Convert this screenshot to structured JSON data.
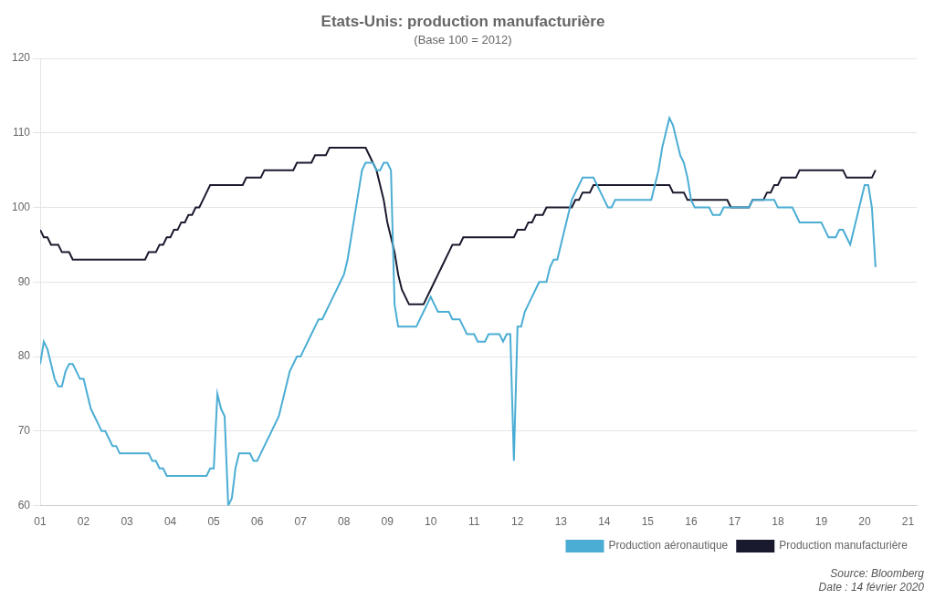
{
  "chart_data": {
    "type": "line",
    "title": "Etats-Unis: production manufacturière",
    "subtitle": "(Base 100 = 2012)",
    "annotations": [
      "Source: Bloomberg",
      "Date : 14 février 2020"
    ],
    "x": [
      2001,
      2001.0833333333333,
      2001.1666666666667,
      2001.25,
      2001.3333333333333,
      2001.4166666666667,
      2001.5,
      2001.5833333333333,
      2001.6666666666667,
      2001.75,
      2001.8333333333333,
      2001.9166666666667,
      2002,
      2002.0833333333333,
      2002.1666666666667,
      2002.25,
      2002.3333333333333,
      2002.4166666666667,
      2002.5,
      2002.5833333333333,
      2002.6666666666667,
      2002.75,
      2002.8333333333333,
      2002.9166666666667,
      2003,
      2003.0833333333333,
      2003.1666666666667,
      2003.25,
      2003.3333333333333,
      2003.4166666666667,
      2003.5,
      2003.5833333333333,
      2003.6666666666667,
      2003.75,
      2003.8333333333333,
      2003.9166666666667,
      2004,
      2004.0833333333333,
      2004.1666666666667,
      2004.25,
      2004.3333333333333,
      2004.4166666666667,
      2004.5,
      2004.5833333333333,
      2004.6666666666667,
      2004.75,
      2004.8333333333333,
      2004.9166666666667,
      2005,
      2005.0833333333333,
      2005.1666666666667,
      2005.25,
      2005.3333333333333,
      2005.4166666666667,
      2005.5,
      2005.5833333333333,
      2005.6666666666667,
      2005.75,
      2005.8333333333333,
      2005.9166666666667,
      2006,
      2006.0833333333333,
      2006.1666666666667,
      2006.25,
      2006.3333333333333,
      2006.4166666666667,
      2006.5,
      2006.5833333333333,
      2006.6666666666667,
      2006.75,
      2006.8333333333333,
      2006.9166666666667,
      2007,
      2007.0833333333333,
      2007.1666666666667,
      2007.25,
      2007.3333333333333,
      2007.4166666666667,
      2007.5,
      2007.5833333333333,
      2007.6666666666667,
      2007.75,
      2007.8333333333333,
      2007.9166666666667,
      2008,
      2008.0833333333333,
      2008.1666666666667,
      2008.25,
      2008.3333333333333,
      2008.4166666666667,
      2008.5,
      2008.5833333333333,
      2008.6666666666667,
      2008.75,
      2008.8333333333333,
      2008.9166666666667,
      2009,
      2009.0833333333333,
      2009.1666666666667,
      2009.25,
      2009.3333333333333,
      2009.4166666666667,
      2009.5,
      2009.5833333333333,
      2009.6666666666667,
      2009.75,
      2009.8333333333333,
      2009.9166666666667,
      2010,
      2010.0833333333333,
      2010.1666666666667,
      2010.25,
      2010.3333333333333,
      2010.4166666666667,
      2010.5,
      2010.5833333333333,
      2010.6666666666667,
      2010.75,
      2010.8333333333333,
      2010.9166666666667,
      2011,
      2011.0833333333333,
      2011.1666666666667,
      2011.25,
      2011.3333333333333,
      2011.4166666666667,
      2011.5,
      2011.5833333333333,
      2011.6666666666667,
      2011.75,
      2011.8333333333333,
      2011.9166666666667,
      2012,
      2012.0833333333333,
      2012.1666666666667,
      2012.25,
      2012.3333333333333,
      2012.4166666666667,
      2012.5,
      2012.5833333333333,
      2012.6666666666667,
      2012.75,
      2012.8333333333333,
      2012.9166666666667,
      2013,
      2013.0833333333333,
      2013.1666666666667,
      2013.25,
      2013.3333333333333,
      2013.4166666666667,
      2013.5,
      2013.5833333333333,
      2013.6666666666667,
      2013.75,
      2013.8333333333333,
      2013.9166666666667,
      2014,
      2014.0833333333333,
      2014.1666666666667,
      2014.25,
      2014.3333333333333,
      2014.4166666666667,
      2014.5,
      2014.5833333333333,
      2014.6666666666667,
      2014.75,
      2014.8333333333333,
      2014.9166666666667,
      2015,
      2015.0833333333333,
      2015.1666666666667,
      2015.25,
      2015.3333333333333,
      2015.4166666666667,
      2015.5,
      2015.5833333333333,
      2015.6666666666667,
      2015.75,
      2015.8333333333333,
      2015.9166666666667,
      2016,
      2016.0833333333333,
      2016.1666666666667,
      2016.25,
      2016.3333333333333,
      2016.4166666666667,
      2016.5,
      2016.5833333333333,
      2016.6666666666667,
      2016.75,
      2016.8333333333333,
      2016.9166666666667,
      2017,
      2017.0833333333333,
      2017.1666666666667,
      2017.25,
      2017.3333333333333,
      2017.4166666666667,
      2017.5,
      2017.5833333333333,
      2017.6666666666667,
      2017.75,
      2017.8333333333333,
      2017.9166666666667,
      2018,
      2018.0833333333333,
      2018.1666666666667,
      2018.25,
      2018.3333333333333,
      2018.4166666666667,
      2018.5,
      2018.5833333333333,
      2018.6666666666667,
      2018.75,
      2018.8333333333333,
      2018.9166666666667,
      2019,
      2019.0833333333333,
      2019.1666666666667,
      2019.25,
      2019.3333333333333,
      2019.4166666666667,
      2019.5,
      2019.5833333333333,
      2019.6666666666667,
      2019.75,
      2019.8333333333333,
      2019.9166666666667,
      2020,
      2020.0833333333333,
      2020.1666666666667,
      2020.25
    ],
    "series": [
      {
        "name": "Production aéronautique",
        "color": "#4badd4",
        "values": [
          79,
          82,
          81,
          79,
          77,
          76,
          76,
          78,
          79,
          79,
          78,
          77,
          77,
          75,
          73,
          72,
          71,
          70,
          70,
          69,
          68,
          68,
          67,
          67,
          67,
          67,
          67,
          67,
          67,
          67,
          67,
          66,
          66,
          65,
          65,
          64,
          64,
          64,
          64,
          64,
          64,
          64,
          64,
          64,
          64,
          64,
          64,
          65,
          65,
          75,
          73,
          72,
          60,
          61,
          65,
          67,
          67,
          67,
          67,
          66,
          66,
          67,
          68,
          69,
          70,
          71,
          72,
          74,
          76,
          78,
          79,
          80,
          80,
          81,
          82,
          83,
          84,
          85,
          85,
          86,
          87,
          88,
          89,
          90,
          91,
          93,
          96,
          99,
          102,
          105,
          106,
          106,
          106,
          105,
          105,
          106,
          106,
          105,
          87,
          84,
          84,
          84,
          84,
          84,
          84,
          85,
          86,
          87,
          88,
          87,
          86,
          86,
          86,
          86,
          85,
          85,
          85,
          84,
          83,
          83,
          83,
          82,
          82,
          82,
          83,
          83,
          83,
          83,
          82,
          83,
          83,
          66,
          84,
          84,
          86,
          87,
          88,
          89,
          90,
          90,
          90,
          92,
          93,
          93,
          95,
          97,
          99,
          101,
          102,
          103,
          104,
          104,
          104,
          104,
          103,
          102,
          101,
          100,
          100,
          101,
          101,
          101,
          101,
          101,
          101,
          101,
          101,
          101,
          101,
          101,
          103,
          105,
          108,
          110,
          112,
          111,
          109,
          107,
          106,
          104,
          101,
          100,
          100,
          100,
          100,
          100,
          99,
          99,
          99,
          100,
          100,
          100,
          100,
          100,
          100,
          100,
          100,
          101,
          101,
          101,
          101,
          101,
          101,
          101,
          100,
          100,
          100,
          100,
          100,
          99,
          98,
          98,
          98,
          98,
          98,
          98,
          98,
          97,
          96,
          96,
          96,
          97,
          97,
          96,
          95,
          97,
          99,
          101,
          103,
          103,
          100,
          92
        ]
      },
      {
        "name": "Production manufacturière",
        "color": "#1a1a2e",
        "values": [
          97,
          96,
          96,
          95,
          95,
          95,
          94,
          94,
          94,
          93,
          93,
          93,
          93,
          93,
          93,
          93,
          93,
          93,
          93,
          93,
          93,
          93,
          93,
          93,
          93,
          93,
          93,
          93,
          93,
          93,
          94,
          94,
          94,
          95,
          95,
          96,
          96,
          97,
          97,
          98,
          98,
          99,
          99,
          100,
          100,
          101,
          102,
          103,
          103,
          103,
          103,
          103,
          103,
          103,
          103,
          103,
          103,
          104,
          104,
          104,
          104,
          104,
          105,
          105,
          105,
          105,
          105,
          105,
          105,
          105,
          105,
          106,
          106,
          106,
          106,
          106,
          107,
          107,
          107,
          107,
          108,
          108,
          108,
          108,
          108,
          108,
          108,
          108,
          108,
          108,
          108,
          107,
          106,
          105,
          103,
          101,
          98,
          96,
          94,
          91,
          89,
          88,
          87,
          87,
          87,
          87,
          87,
          88,
          89,
          90,
          91,
          92,
          93,
          94,
          95,
          95,
          95,
          96,
          96,
          96,
          96,
          96,
          96,
          96,
          96,
          96,
          96,
          96,
          96,
          96,
          96,
          96,
          97,
          97,
          97,
          98,
          98,
          99,
          99,
          99,
          100,
          100,
          100,
          100,
          100,
          100,
          100,
          100,
          101,
          101,
          102,
          102,
          102,
          103,
          103,
          103,
          103,
          103,
          103,
          103,
          103,
          103,
          103,
          103,
          103,
          103,
          103,
          103,
          103,
          103,
          103,
          103,
          103,
          103,
          103,
          102,
          102,
          102,
          102,
          101,
          101,
          101,
          101,
          101,
          101,
          101,
          101,
          101,
          101,
          101,
          101,
          100,
          100,
          100,
          100,
          100,
          100,
          101,
          101,
          101,
          101,
          102,
          102,
          103,
          103,
          104,
          104,
          104,
          104,
          104,
          105,
          105,
          105,
          105,
          105,
          105,
          105,
          105,
          105,
          105,
          105,
          105,
          105,
          104,
          104,
          104,
          104,
          104,
          104,
          104,
          104,
          105
        ]
      }
    ],
    "xlim": [
      2001,
      2021.2
    ],
    "xticks": [
      {
        "value": 2001,
        "label": "01"
      },
      {
        "value": 2002,
        "label": "02"
      },
      {
        "value": 2003,
        "label": "03"
      },
      {
        "value": 2004,
        "label": "04"
      },
      {
        "value": 2005,
        "label": "05"
      },
      {
        "value": 2006,
        "label": "06"
      },
      {
        "value": 2007,
        "label": "07"
      },
      {
        "value": 2008,
        "label": "08"
      },
      {
        "value": 2009,
        "label": "09"
      },
      {
        "value": 2010,
        "label": "10"
      },
      {
        "value": 2011,
        "label": "11"
      },
      {
        "value": 2012,
        "label": "12"
      },
      {
        "value": 2013,
        "label": "13"
      },
      {
        "value": 2014,
        "label": "14"
      },
      {
        "value": 2015,
        "label": "15"
      },
      {
        "value": 2016,
        "label": "16"
      },
      {
        "value": 2017,
        "label": "17"
      },
      {
        "value": 2018,
        "label": "18"
      },
      {
        "value": 2019,
        "label": "19"
      },
      {
        "value": 2020,
        "label": "20"
      },
      {
        "value": 2021,
        "label": "21"
      }
    ],
    "ylim": [
      60,
      120
    ],
    "yticks": [
      60,
      70,
      80,
      90,
      100,
      110,
      120
    ],
    "grid": "y",
    "legend": "lower right"
  }
}
